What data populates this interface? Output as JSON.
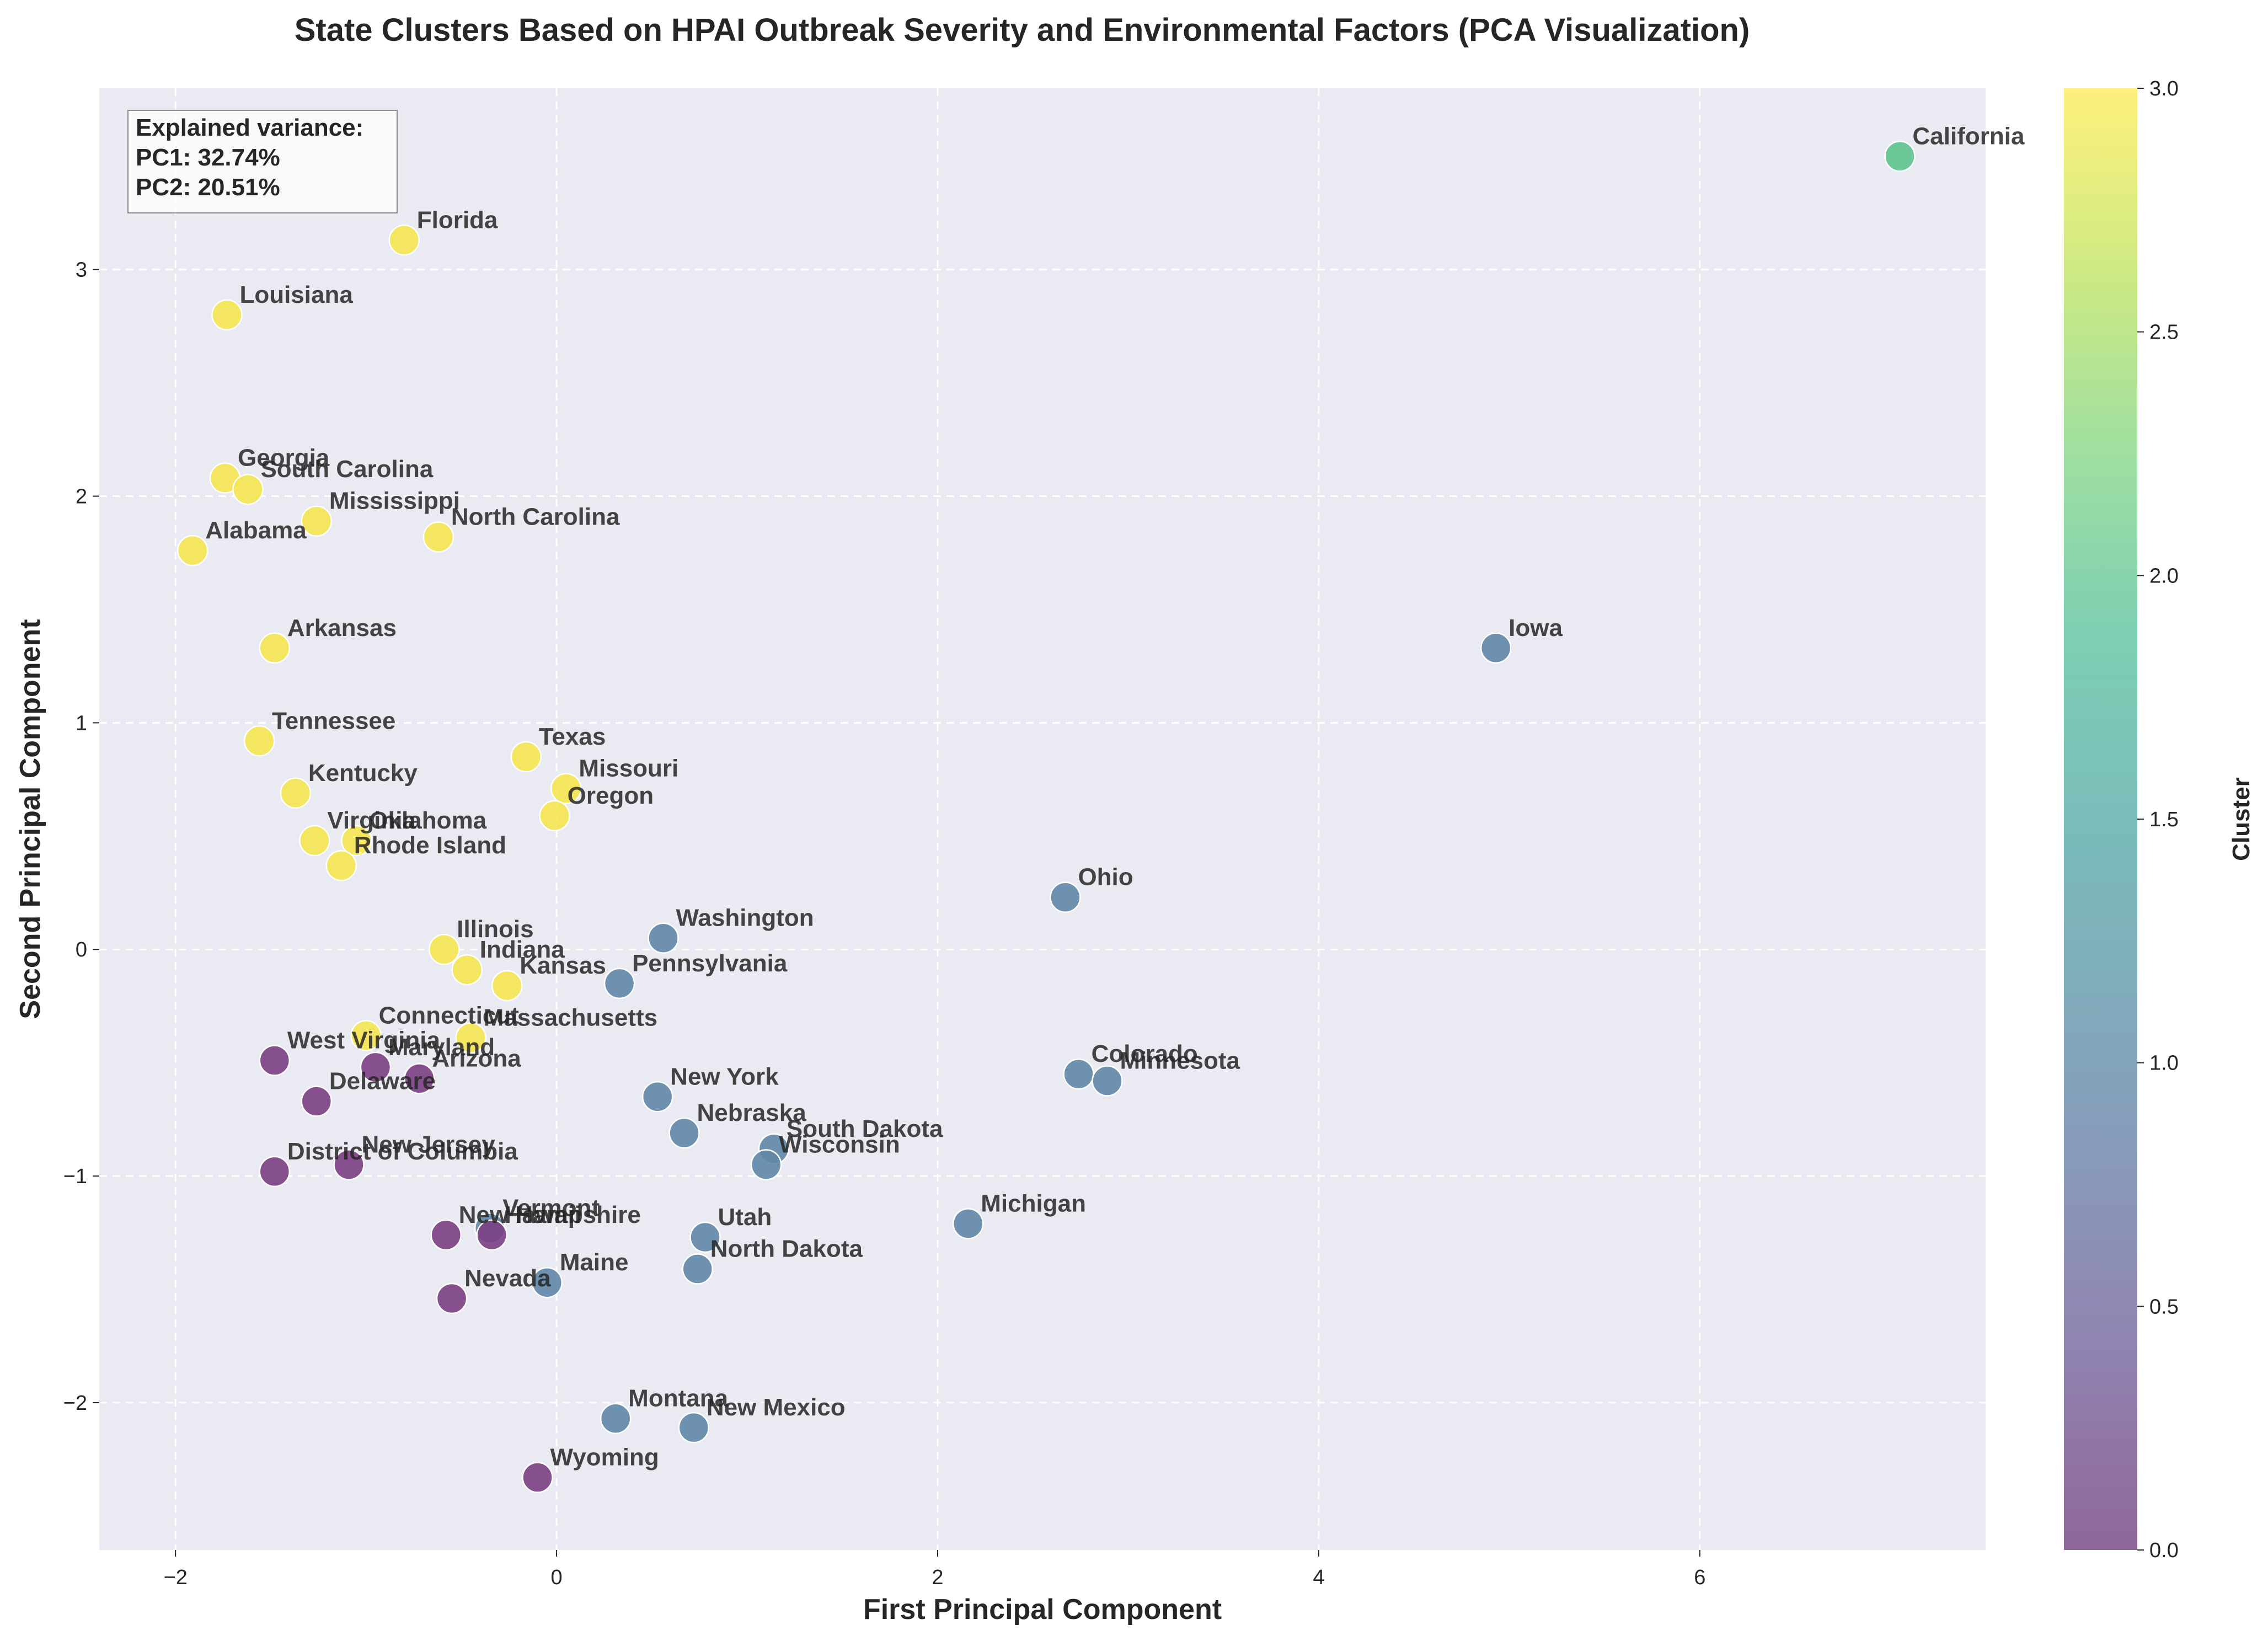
{
  "chart_data": {
    "type": "scatter",
    "title": "State Clusters Based on HPAI Outbreak Severity and Environmental Factors (PCA Visualization)",
    "xlabel": "First Principal Component",
    "ylabel": "Second Principal Component",
    "xlim": [
      -2.4,
      7.5
    ],
    "ylim": [
      -2.65,
      3.8
    ],
    "xticks": [
      -2,
      0,
      2,
      4,
      6
    ],
    "yticks": [
      -2,
      -1,
      0,
      1,
      2,
      3
    ],
    "grid": true,
    "colorbar": {
      "label": "Cluster",
      "min": 0.0,
      "max": 3.0,
      "ticks": [
        "0.0",
        "0.5",
        "1.0",
        "1.5",
        "2.0",
        "2.5",
        "3.0"
      ],
      "colormap": "viridis"
    },
    "annotation": {
      "lines": [
        "Explained variance:",
        "PC1: 32.74%",
        "PC2: 20.51%"
      ],
      "position": "top-left"
    },
    "cluster_colors": {
      "0": "#7b3f84",
      "1": "#5f87a6",
      "2": "#5ec48d",
      "3": "#f5e650"
    },
    "points": [
      {
        "label": "California",
        "x": 7.05,
        "y": 3.5,
        "cluster": 2
      },
      {
        "label": "Florida",
        "x": -0.8,
        "y": 3.13,
        "cluster": 3
      },
      {
        "label": "Louisiana",
        "x": -1.73,
        "y": 2.8,
        "cluster": 3
      },
      {
        "label": "Georgia",
        "x": -1.74,
        "y": 2.08,
        "cluster": 3
      },
      {
        "label": "South Carolina",
        "x": -1.62,
        "y": 2.03,
        "cluster": 3
      },
      {
        "label": "Mississippi",
        "x": -1.26,
        "y": 1.89,
        "cluster": 3
      },
      {
        "label": "North Carolina",
        "x": -0.62,
        "y": 1.82,
        "cluster": 3
      },
      {
        "label": "Alabama",
        "x": -1.91,
        "y": 1.76,
        "cluster": 3
      },
      {
        "label": "Arkansas",
        "x": -1.48,
        "y": 1.33,
        "cluster": 3
      },
      {
        "label": "Tennessee",
        "x": -1.56,
        "y": 0.92,
        "cluster": 3
      },
      {
        "label": "Texas",
        "x": -0.16,
        "y": 0.85,
        "cluster": 3
      },
      {
        "label": "Missouri",
        "x": 0.05,
        "y": 0.71,
        "cluster": 3
      },
      {
        "label": "Kentucky",
        "x": -1.37,
        "y": 0.69,
        "cluster": 3
      },
      {
        "label": "Oregon",
        "x": -0.01,
        "y": 0.59,
        "cluster": 3
      },
      {
        "label": "Virginia",
        "x": -1.27,
        "y": 0.48,
        "cluster": 3
      },
      {
        "label": "Oklahoma",
        "x": -1.05,
        "y": 0.48,
        "cluster": 3
      },
      {
        "label": "Rhode Island",
        "x": -1.13,
        "y": 0.37,
        "cluster": 3
      },
      {
        "label": "Illinois",
        "x": -0.59,
        "y": 0.0,
        "cluster": 3
      },
      {
        "label": "Indiana",
        "x": -0.47,
        "y": -0.09,
        "cluster": 3
      },
      {
        "label": "Kansas",
        "x": -0.26,
        "y": -0.16,
        "cluster": 3
      },
      {
        "label": "Connecticut",
        "x": -1.0,
        "y": -0.38,
        "cluster": 3
      },
      {
        "label": "Massachusetts",
        "x": -0.45,
        "y": -0.39,
        "cluster": 3
      },
      {
        "label": "Iowa",
        "x": 4.93,
        "y": 1.33,
        "cluster": 1
      },
      {
        "label": "Ohio",
        "x": 2.67,
        "y": 0.23,
        "cluster": 1
      },
      {
        "label": "Washington",
        "x": 0.56,
        "y": 0.05,
        "cluster": 1
      },
      {
        "label": "Pennsylvania",
        "x": 0.33,
        "y": -0.15,
        "cluster": 1
      },
      {
        "label": "Colorado",
        "x": 2.74,
        "y": -0.55,
        "cluster": 1
      },
      {
        "label": "Minnesota",
        "x": 2.89,
        "y": -0.58,
        "cluster": 1
      },
      {
        "label": "New York",
        "x": 0.53,
        "y": -0.65,
        "cluster": 1
      },
      {
        "label": "Nebraska",
        "x": 0.67,
        "y": -0.81,
        "cluster": 1
      },
      {
        "label": "South Dakota",
        "x": 1.14,
        "y": -0.88,
        "cluster": 1
      },
      {
        "label": "Wisconsin",
        "x": 1.1,
        "y": -0.95,
        "cluster": 1
      },
      {
        "label": "Michigan",
        "x": 2.16,
        "y": -1.21,
        "cluster": 1
      },
      {
        "label": "Utah",
        "x": 0.78,
        "y": -1.27,
        "cluster": 1
      },
      {
        "label": "North Dakota",
        "x": 0.74,
        "y": -1.41,
        "cluster": 1
      },
      {
        "label": "Vermont",
        "x": -0.35,
        "y": -1.23,
        "cluster": 1
      },
      {
        "label": "Maine",
        "x": -0.05,
        "y": -1.47,
        "cluster": 1
      },
      {
        "label": "Montana",
        "x": 0.31,
        "y": -2.07,
        "cluster": 1
      },
      {
        "label": "New Mexico",
        "x": 0.72,
        "y": -2.11,
        "cluster": 1
      },
      {
        "label": "West Virginia",
        "x": -1.48,
        "y": -0.49,
        "cluster": 0
      },
      {
        "label": "Maryland",
        "x": -0.95,
        "y": -0.52,
        "cluster": 0
      },
      {
        "label": "Arizona",
        "x": -0.72,
        "y": -0.57,
        "cluster": 0
      },
      {
        "label": "Delaware",
        "x": -1.26,
        "y": -0.67,
        "cluster": 0
      },
      {
        "label": "New Jersey",
        "x": -1.09,
        "y": -0.95,
        "cluster": 0
      },
      {
        "label": "District of Columbia",
        "x": -1.48,
        "y": -0.98,
        "cluster": 0
      },
      {
        "label": "New Hampshire",
        "x": -0.58,
        "y": -1.26,
        "cluster": 0
      },
      {
        "label": "Hawaii",
        "x": -0.34,
        "y": -1.26,
        "cluster": 0
      },
      {
        "label": "Nevada",
        "x": -0.55,
        "y": -1.54,
        "cluster": 0
      },
      {
        "label": "Wyoming",
        "x": -0.1,
        "y": -2.33,
        "cluster": 0
      }
    ]
  }
}
